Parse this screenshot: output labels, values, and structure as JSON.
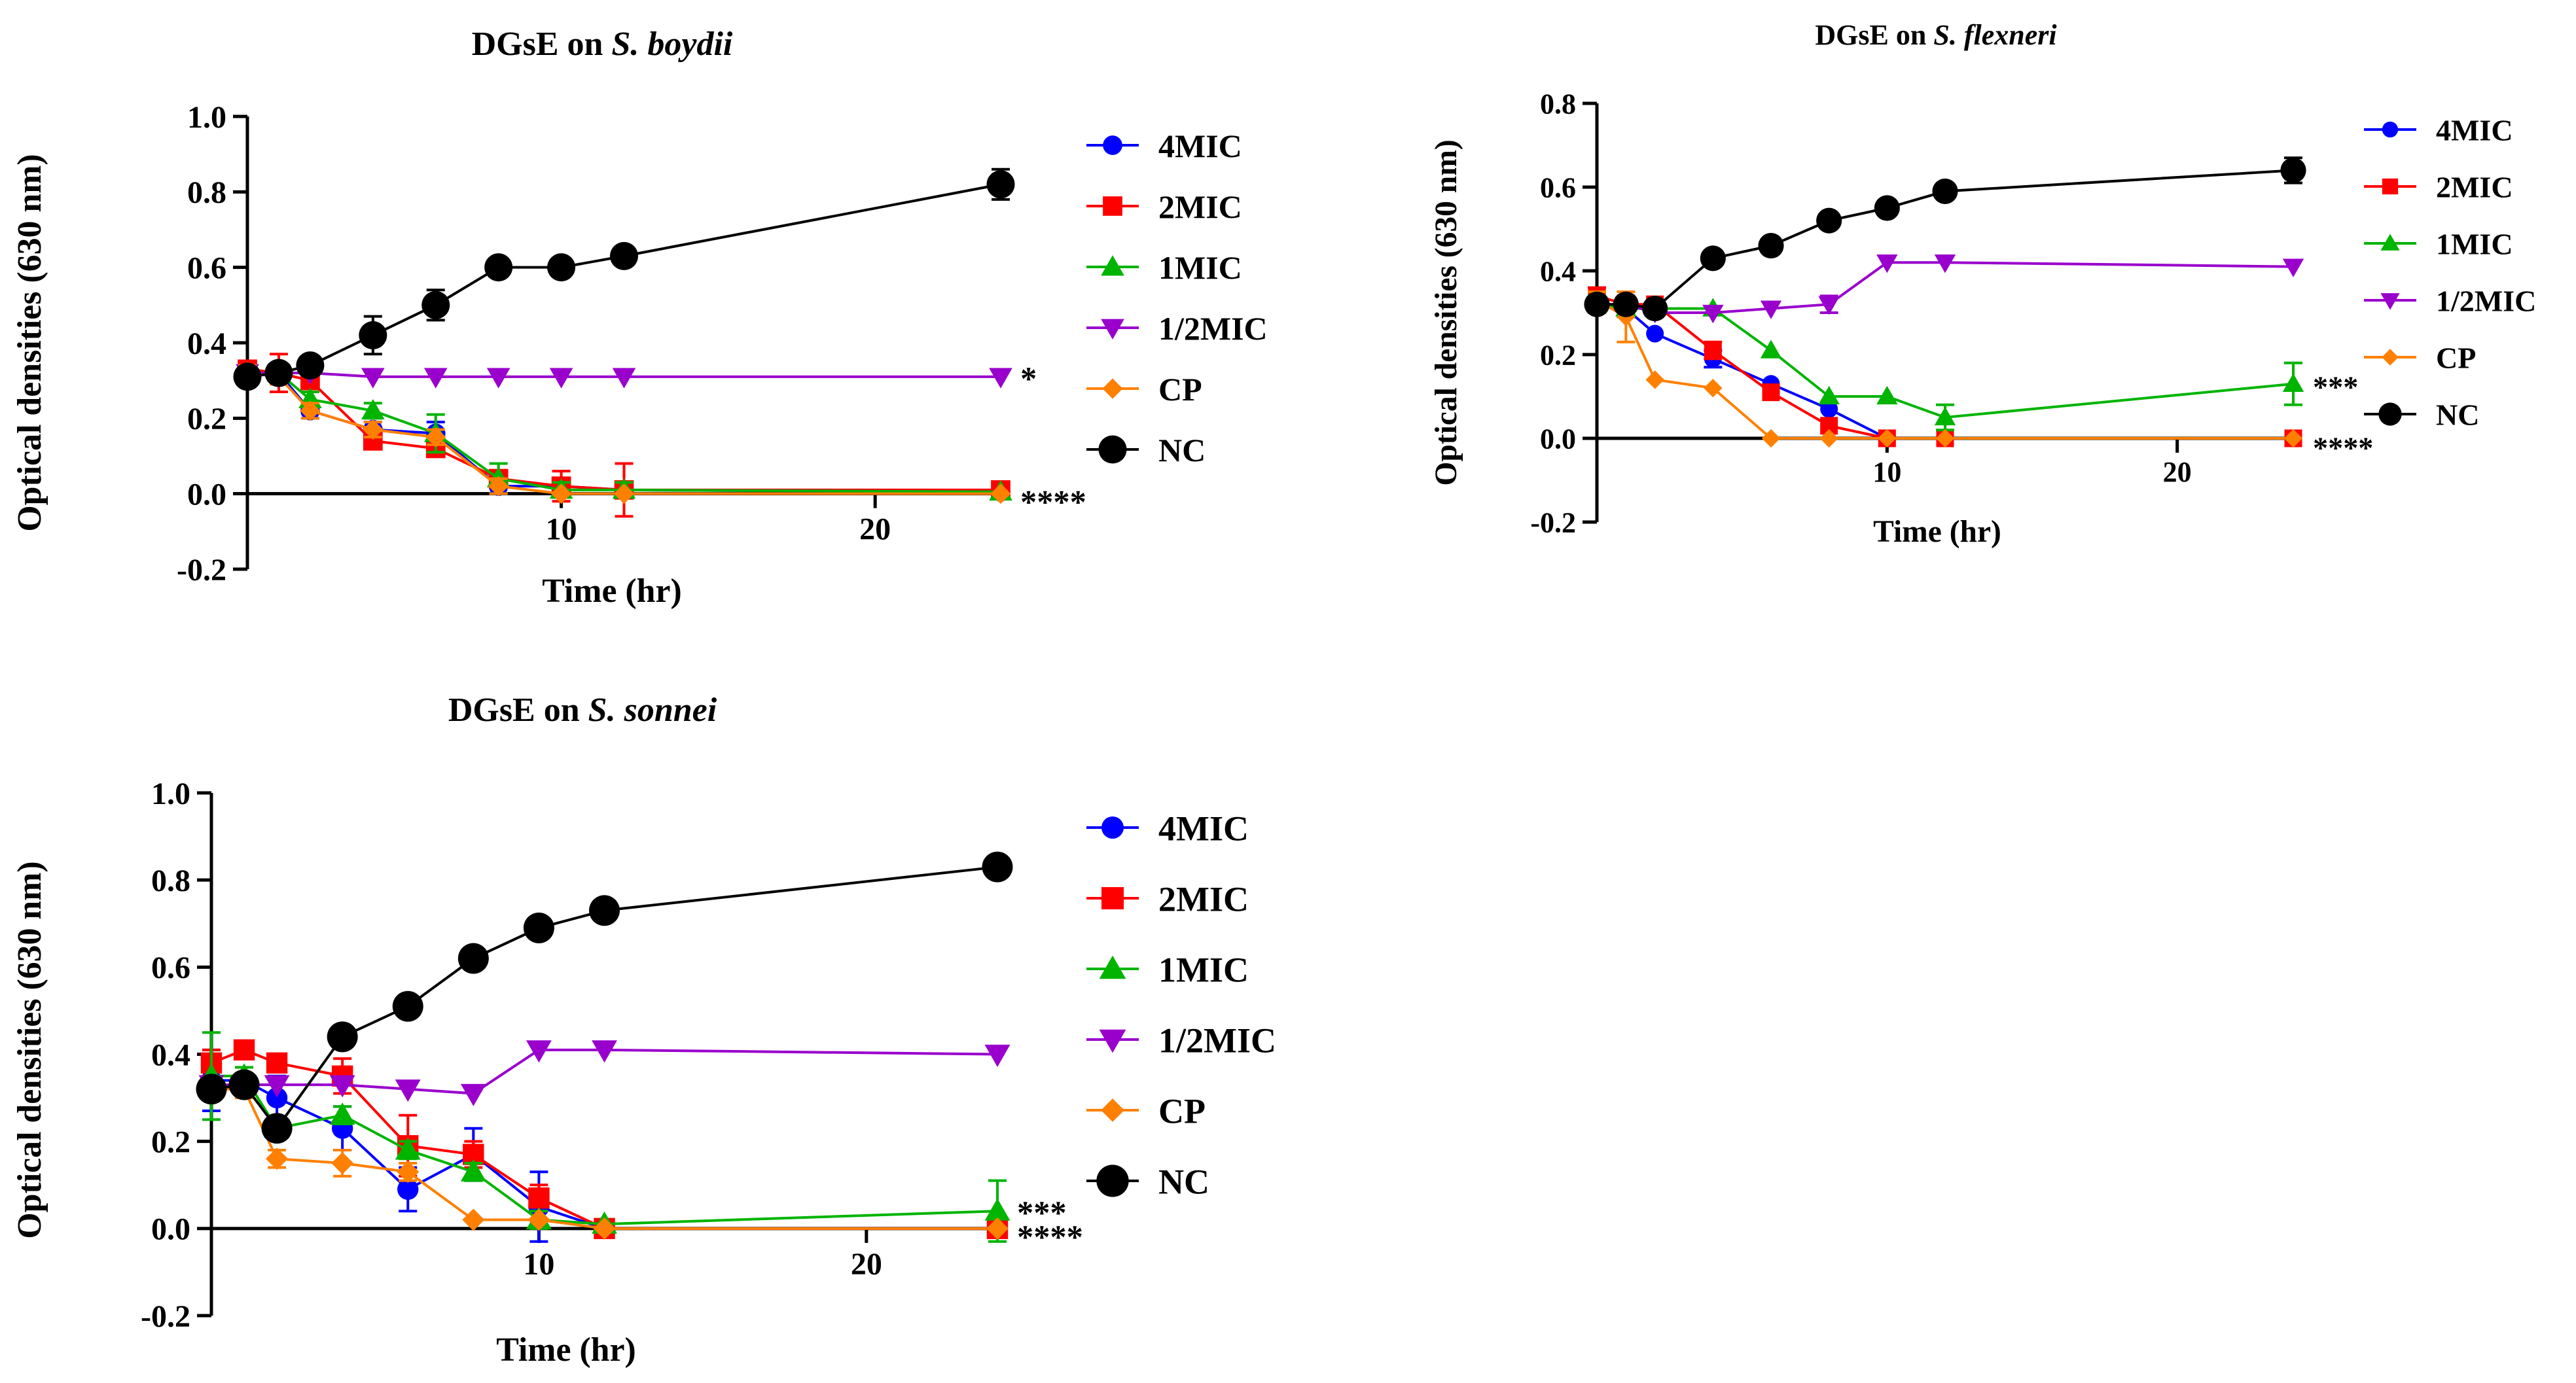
{
  "chart_data": [
    {
      "type": "line",
      "id": "boydii",
      "title_prefix": "DGsE on ",
      "title_species": "S. boydii",
      "xlabel": "Time (hr)",
      "ylabel": "Optical densities (630 nm)",
      "xlim": [
        0,
        24
      ],
      "ylim": [
        -0.2,
        1.0
      ],
      "xticks": [
        10,
        20
      ],
      "yticks": [
        -0.2,
        0.0,
        0.2,
        0.4,
        0.6,
        0.8,
        1.0
      ],
      "ytick_labels": [
        "-0.2",
        "0.0",
        "0.2",
        "0.4",
        "0.6",
        "0.8",
        "1.0"
      ],
      "xtick_labels": [
        "10",
        "20"
      ],
      "legend_position": "right",
      "series": [
        {
          "name": "4MIC",
          "color": "#0000ff",
          "marker": "circle",
          "x": [
            0,
            1,
            2,
            4,
            6,
            8,
            10,
            12,
            24
          ],
          "y": [
            0.33,
            0.32,
            0.22,
            0.17,
            0.16,
            0.02,
            0.02,
            0.01,
            0.005
          ],
          "err": [
            0.02,
            0.02,
            0.02,
            0.02,
            0.03,
            0.02,
            0.02,
            0.02,
            0.01
          ]
        },
        {
          "name": "2MIC",
          "color": "#ff0000",
          "marker": "square",
          "x": [
            0,
            1,
            2,
            4,
            6,
            8,
            10,
            12,
            24
          ],
          "y": [
            0.33,
            0.32,
            0.3,
            0.14,
            0.12,
            0.04,
            0.02,
            0.01,
            0.01
          ],
          "err": [
            0.02,
            0.05,
            0.03,
            0.02,
            0.02,
            0.02,
            0.04,
            0.07,
            0.01
          ]
        },
        {
          "name": "1MIC",
          "color": "#00b400",
          "marker": "triangle-up",
          "x": [
            0,
            1,
            2,
            4,
            6,
            8,
            10,
            12,
            24
          ],
          "y": [
            0.32,
            0.32,
            0.25,
            0.22,
            0.16,
            0.04,
            0.01,
            0.01,
            0.005
          ],
          "err": [
            0.02,
            0.02,
            0.02,
            0.02,
            0.05,
            0.04,
            0.02,
            0.02,
            0.01
          ]
        },
        {
          "name": "1/2MIC",
          "color": "#9900cc",
          "marker": "triangle-down",
          "x": [
            0,
            1,
            2,
            4,
            6,
            8,
            10,
            12,
            24
          ],
          "y": [
            0.32,
            0.32,
            0.32,
            0.31,
            0.31,
            0.31,
            0.31,
            0.31,
            0.31
          ],
          "err": [
            0.01,
            0.01,
            0.01,
            0.01,
            0.01,
            0.01,
            0.01,
            0.01,
            0.01
          ]
        },
        {
          "name": "CP",
          "color": "#ff8000",
          "marker": "diamond",
          "x": [
            0,
            1,
            2,
            4,
            6,
            8,
            10,
            12,
            24
          ],
          "y": [
            0.32,
            0.31,
            0.22,
            0.17,
            0.15,
            0.02,
            0.0,
            0.0,
            0.0
          ],
          "err": [
            0.02,
            0.02,
            0.02,
            0.02,
            0.02,
            0.02,
            0.01,
            0.01,
            0.01
          ]
        },
        {
          "name": "NC",
          "color": "#000000",
          "marker": "circle-large",
          "x": [
            0,
            1,
            2,
            4,
            6,
            8,
            10,
            12,
            24
          ],
          "y": [
            0.31,
            0.32,
            0.34,
            0.42,
            0.5,
            0.6,
            0.6,
            0.63,
            0.82
          ],
          "err": [
            0.02,
            0.02,
            0.02,
            0.05,
            0.04,
            0.01,
            0.01,
            0.01,
            0.04
          ]
        }
      ],
      "annotations": [
        {
          "text": "*",
          "x": 24,
          "y": 0.31
        },
        {
          "text": "****",
          "x": 24,
          "y": 0.0
        }
      ]
    },
    {
      "type": "line",
      "id": "flexneri",
      "title_prefix": "DGsE on ",
      "title_species": "S. flexneri",
      "xlabel": "Time (hr)",
      "ylabel": "Optical densities (630 nm)",
      "xlim": [
        0,
        24
      ],
      "ylim": [
        -0.2,
        0.8
      ],
      "xticks": [
        10,
        20
      ],
      "yticks": [
        -0.2,
        0.0,
        0.2,
        0.4,
        0.6,
        0.8
      ],
      "ytick_labels": [
        "-0.2",
        "0.0",
        "0.2",
        "0.4",
        "0.6",
        "0.8"
      ],
      "xtick_labels": [
        "10",
        "20"
      ],
      "legend_position": "right",
      "series": [
        {
          "name": "4MIC",
          "color": "#0000ff",
          "marker": "circle",
          "x": [
            0,
            1,
            2,
            4,
            6,
            8,
            10,
            12,
            24
          ],
          "y": [
            0.32,
            0.31,
            0.25,
            0.19,
            0.13,
            0.07,
            0.0,
            0.0,
            0.0
          ],
          "err": [
            0.02,
            0.01,
            0.01,
            0.02,
            0.01,
            0.01,
            0.0,
            0.0,
            0.0
          ]
        },
        {
          "name": "2MIC",
          "color": "#ff0000",
          "marker": "square",
          "x": [
            0,
            1,
            2,
            4,
            6,
            8,
            10,
            12,
            24
          ],
          "y": [
            0.34,
            0.32,
            0.32,
            0.21,
            0.11,
            0.03,
            0.0,
            0.0,
            0.0
          ],
          "err": [
            0.02,
            0.02,
            0.01,
            0.02,
            0.01,
            0.01,
            0.0,
            0.0,
            0.0
          ]
        },
        {
          "name": "1MIC",
          "color": "#00b400",
          "marker": "triangle-up",
          "x": [
            0,
            1,
            2,
            4,
            6,
            8,
            10,
            12,
            24
          ],
          "y": [
            0.32,
            0.31,
            0.31,
            0.31,
            0.21,
            0.1,
            0.1,
            0.05,
            0.13
          ],
          "err": [
            0.02,
            0.02,
            0.01,
            0.01,
            0.01,
            0.01,
            0.01,
            0.03,
            0.05
          ]
        },
        {
          "name": "1/2MIC",
          "color": "#9900cc",
          "marker": "triangle-down",
          "x": [
            0,
            1,
            2,
            4,
            6,
            8,
            10,
            12,
            24
          ],
          "y": [
            0.32,
            0.32,
            0.3,
            0.3,
            0.31,
            0.32,
            0.42,
            0.42,
            0.41
          ],
          "err": [
            0.01,
            0.01,
            0.01,
            0.01,
            0.01,
            0.02,
            0.01,
            0.01,
            0.01
          ]
        },
        {
          "name": "CP",
          "color": "#ff8000",
          "marker": "diamond",
          "x": [
            0,
            1,
            2,
            4,
            6,
            8,
            10,
            12,
            24
          ],
          "y": [
            0.33,
            0.29,
            0.14,
            0.12,
            0.0,
            0.0,
            0.0,
            0.0,
            0.0
          ],
          "err": [
            0.02,
            0.06,
            0.01,
            0.01,
            0.0,
            0.0,
            0.0,
            0.0,
            0.0
          ]
        },
        {
          "name": "NC",
          "color": "#000000",
          "marker": "circle-large",
          "x": [
            0,
            1,
            2,
            4,
            6,
            8,
            10,
            12,
            24
          ],
          "y": [
            0.32,
            0.32,
            0.31,
            0.43,
            0.46,
            0.52,
            0.55,
            0.59,
            0.64
          ],
          "err": [
            0.01,
            0.01,
            0.01,
            0.01,
            0.01,
            0.01,
            0.01,
            0.01,
            0.03
          ]
        }
      ],
      "annotations": [
        {
          "text": "***",
          "x": 24,
          "y": 0.13
        },
        {
          "text": "****",
          "x": 24,
          "y": 0.0
        }
      ]
    },
    {
      "type": "line",
      "id": "sonnei",
      "title_prefix": "DGsE on ",
      "title_species": "S. sonnei",
      "xlabel": "Time (hr)",
      "ylabel": "Optical densities (630 nm)",
      "xlim": [
        0,
        24
      ],
      "ylim": [
        -0.2,
        1.0
      ],
      "xticks": [
        10,
        20
      ],
      "yticks": [
        -0.2,
        0.0,
        0.2,
        0.4,
        0.6,
        0.8,
        1.0
      ],
      "ytick_labels": [
        "-0.2",
        "0.0",
        "0.2",
        "0.4",
        "0.6",
        "0.8",
        "1.0"
      ],
      "xtick_labels": [
        "10",
        "20"
      ],
      "legend_position": "right",
      "series": [
        {
          "name": "4MIC",
          "color": "#0000ff",
          "marker": "circle",
          "x": [
            0,
            1,
            2,
            4,
            6,
            8,
            10,
            12,
            24
          ],
          "y": [
            0.34,
            0.34,
            0.3,
            0.23,
            0.09,
            0.17,
            0.05,
            0.0,
            0.0
          ],
          "err": [
            0.07,
            0.03,
            0.05,
            0.05,
            0.05,
            0.06,
            0.08,
            0.01,
            0.01
          ]
        },
        {
          "name": "2MIC",
          "color": "#ff0000",
          "marker": "square",
          "x": [
            0,
            1,
            2,
            4,
            6,
            8,
            10,
            12,
            24
          ],
          "y": [
            0.38,
            0.41,
            0.38,
            0.35,
            0.19,
            0.17,
            0.07,
            0.0,
            0.0
          ],
          "err": [
            0.03,
            0.02,
            0.02,
            0.04,
            0.07,
            0.03,
            0.03,
            0.01,
            0.01
          ]
        },
        {
          "name": "1MIC",
          "color": "#00b400",
          "marker": "triangle-up",
          "x": [
            0,
            1,
            2,
            4,
            6,
            8,
            10,
            12,
            24
          ],
          "y": [
            0.35,
            0.35,
            0.23,
            0.26,
            0.18,
            0.13,
            0.02,
            0.01,
            0.04
          ],
          "err": [
            0.1,
            0.02,
            0.02,
            0.02,
            0.02,
            0.02,
            0.02,
            0.01,
            0.07
          ]
        },
        {
          "name": "1/2MIC",
          "color": "#9900cc",
          "marker": "triangle-down",
          "x": [
            0,
            1,
            2,
            4,
            6,
            8,
            10,
            12,
            24
          ],
          "y": [
            0.33,
            0.33,
            0.33,
            0.33,
            0.32,
            0.31,
            0.41,
            0.41,
            0.4
          ],
          "err": [
            0.01,
            0.01,
            0.01,
            0.01,
            0.01,
            0.01,
            0.01,
            0.01,
            0.01
          ]
        },
        {
          "name": "CP",
          "color": "#ff8000",
          "marker": "diamond",
          "x": [
            0,
            1,
            2,
            4,
            6,
            8,
            10,
            12,
            24
          ],
          "y": [
            0.32,
            0.32,
            0.16,
            0.15,
            0.13,
            0.02,
            0.02,
            0.0,
            0.0
          ],
          "err": [
            0.02,
            0.02,
            0.02,
            0.03,
            0.02,
            0.01,
            0.01,
            0.0,
            0.0
          ]
        },
        {
          "name": "NC",
          "color": "#000000",
          "marker": "circle-large",
          "x": [
            0,
            1,
            2,
            4,
            6,
            8,
            10,
            12,
            24
          ],
          "y": [
            0.32,
            0.33,
            0.23,
            0.44,
            0.51,
            0.62,
            0.69,
            0.73,
            0.83
          ],
          "err": [
            0.02,
            0.02,
            0.02,
            0.01,
            0.01,
            0.01,
            0.01,
            0.02,
            0.01
          ]
        }
      ],
      "annotations": [
        {
          "text": "***",
          "x": 24,
          "y": 0.04
        },
        {
          "text": "****",
          "x": 24,
          "y": 0.0
        }
      ]
    }
  ]
}
